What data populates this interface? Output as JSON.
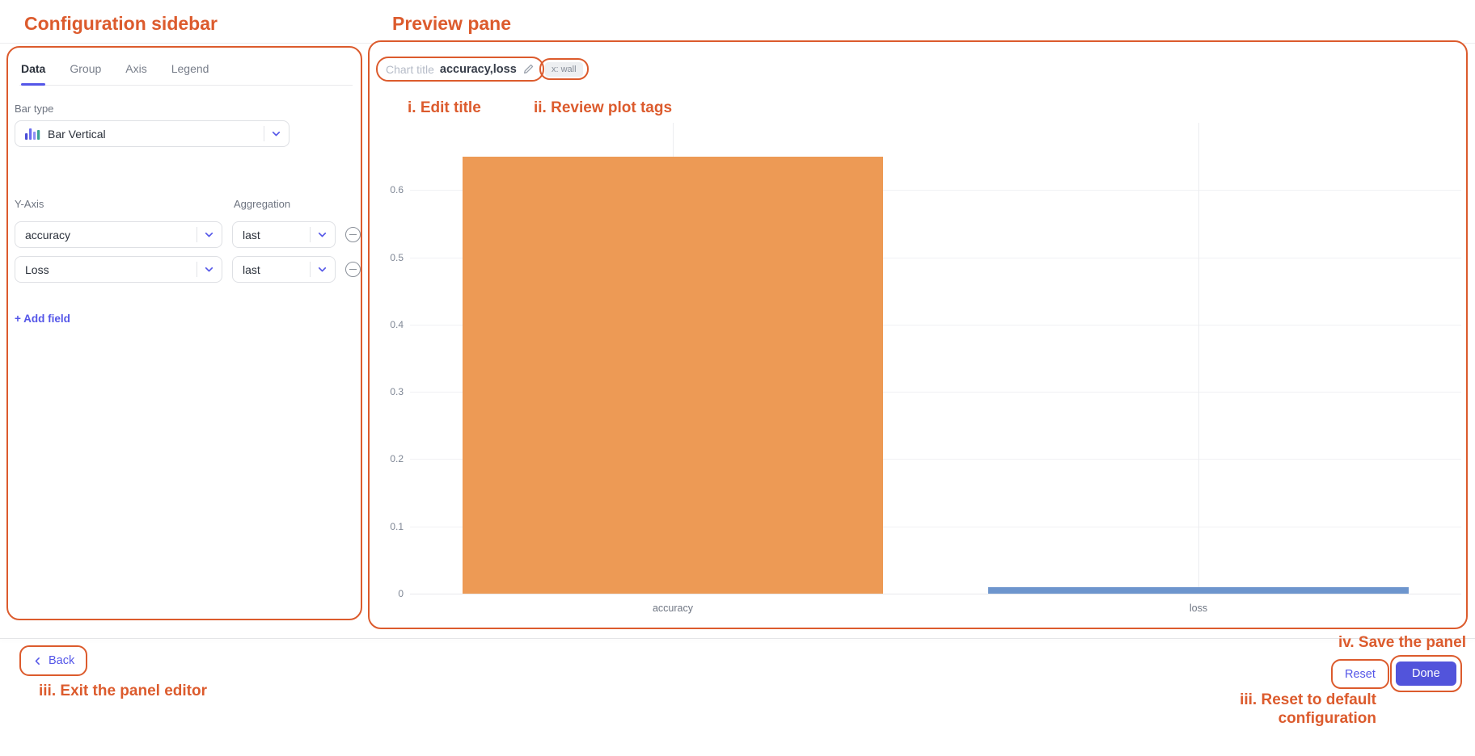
{
  "annotations": {
    "sidebar_title": "Configuration sidebar",
    "preview_title": "Preview pane",
    "edit_title": "i. Edit title",
    "review_tags": "ii. Review plot tags",
    "exit_editor": "iii. Exit the panel editor",
    "save_panel": "iv. Save the panel",
    "reset_config_line1": "iii. Reset to default",
    "reset_config_line2": "configuration"
  },
  "sidebar": {
    "tabs": [
      {
        "label": "Data",
        "active": true
      },
      {
        "label": "Group",
        "active": false
      },
      {
        "label": "Axis",
        "active": false
      },
      {
        "label": "Legend",
        "active": false
      }
    ],
    "bar_type": {
      "label": "Bar type",
      "value": "Bar Vertical",
      "icon": "bar-vertical-icon"
    },
    "y_axis": {
      "label": "Y-Axis",
      "aggregation_label": "Aggregation",
      "fields": [
        {
          "metric": "accuracy",
          "aggregation": "last"
        },
        {
          "metric": "Loss",
          "aggregation": "last"
        }
      ]
    },
    "add_field_label": "+ Add field"
  },
  "preview": {
    "chart_title_placeholder": "Chart title",
    "chart_title_value": "accuracy,loss",
    "edit_icon": "pencil-icon",
    "tag": "x: wall"
  },
  "chart_data": {
    "type": "bar",
    "categories": [
      "accuracy",
      "loss"
    ],
    "values": [
      0.65,
      0.01
    ],
    "bar_colors": [
      "#ED9A55",
      "#6D95CD"
    ],
    "title": "",
    "xlabel": "",
    "ylabel": "",
    "yticks": [
      0,
      0.1,
      0.2,
      0.3,
      0.4,
      0.5,
      0.6
    ],
    "ylim": [
      0,
      0.7
    ],
    "ymax": 0.7,
    "bar_width_frac": 0.8,
    "grid": true,
    "legend": false
  },
  "footer": {
    "back_label": "Back",
    "back_icon": "chevron-left-icon",
    "reset_label": "Reset",
    "done_label": "Done"
  },
  "icons": {
    "select_caret": "chevron-down-icon",
    "remove_field": "minus-circle-icon"
  },
  "colors": {
    "annotation": "#DC5B2D",
    "accent": "#5456E8",
    "done_button": "#5254DB",
    "accuracy_bar": "#ED9A55",
    "loss_bar": "#6D95CD",
    "tag_background": "#EDEFF1"
  }
}
